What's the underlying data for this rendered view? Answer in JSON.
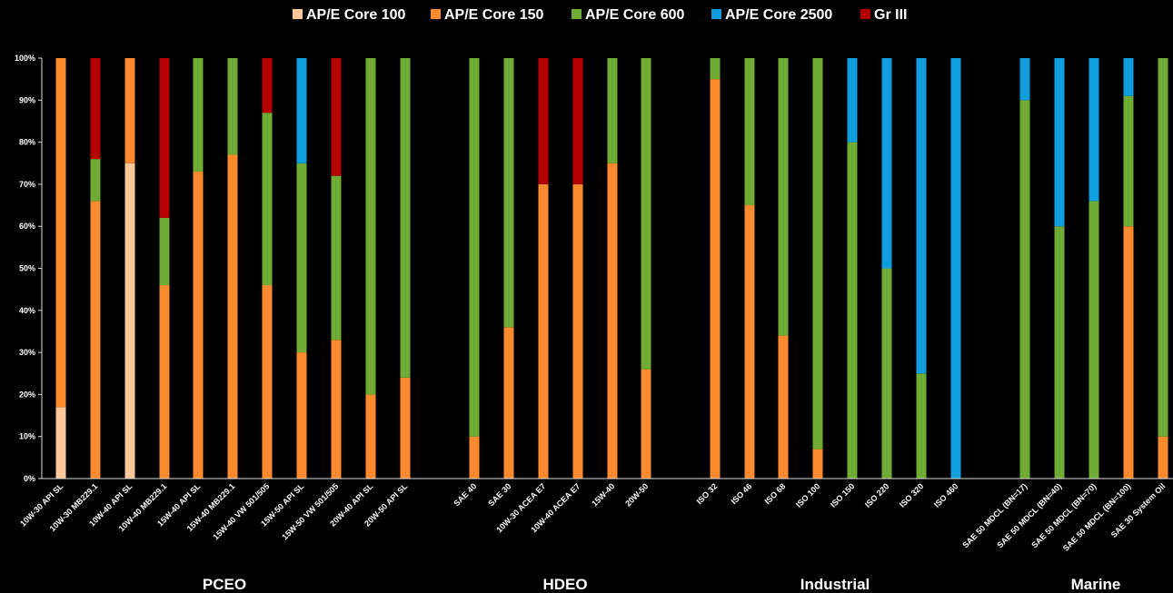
{
  "chart_data": {
    "type": "bar",
    "stacked": true,
    "percent": true,
    "title": "",
    "xlabel": "",
    "ylabel": "",
    "ylim": [
      0,
      100
    ],
    "y_ticks": [
      "0%",
      "10%",
      "20%",
      "30%",
      "40%",
      "50%",
      "60%",
      "70%",
      "80%",
      "90%",
      "100%"
    ],
    "grid": false,
    "legend_position": "top-center",
    "series": [
      {
        "name": "AP/E Core 100",
        "color": "#fcc89a"
      },
      {
        "name": "AP/E Core 150",
        "color": "#fb8a2e"
      },
      {
        "name": "AP/E Core 600",
        "color": "#6fab35"
      },
      {
        "name": "AP/E Core 2500",
        "color": "#0f9ede"
      },
      {
        "name": "Gr III",
        "color": "#b40000"
      }
    ],
    "categories": [
      "10W-30 API SL",
      "10W-30 MB229.1",
      "10W-40 API SL",
      "10W-40 MB229.1",
      "15W-40 API SL",
      "15W-40 MB229.1",
      "15W-40 VW 501/505",
      "15W-50 API SL",
      "15W-50 VW 501/505",
      "20W-40 API SL",
      "20W-50 API SL",
      "SAE 40",
      "SAE 30",
      "10W-30 ACEA E7",
      "10W-40 ACEA E7",
      "15W-40",
      "20W-50",
      "ISO 32",
      "ISO 46",
      "ISO 68",
      "ISO 100",
      "ISO 150",
      "ISO 220",
      "ISO 320",
      "ISO 460",
      "SAE 50 MDCL (BN=17)",
      "SAE 50 MDCL (BN=40)",
      "SAE 50 MDCL (BN=70)",
      "SAE 50 MDCL (BN=100)",
      "SAE 30 System Oil"
    ],
    "values": [
      [
        17,
        83,
        0,
        0,
        0
      ],
      [
        0,
        66,
        10,
        0,
        24
      ],
      [
        75,
        25,
        0,
        0,
        0
      ],
      [
        0,
        46,
        16,
        0,
        38
      ],
      [
        0,
        73,
        27,
        0,
        0
      ],
      [
        0,
        77,
        23,
        0,
        0
      ],
      [
        0,
        46,
        41,
        0,
        13
      ],
      [
        0,
        30,
        45,
        25,
        0
      ],
      [
        0,
        33,
        39,
        0,
        28
      ],
      [
        0,
        20,
        80,
        0,
        0
      ],
      [
        0,
        24,
        76,
        0,
        0
      ],
      [
        0,
        10,
        90,
        0,
        0
      ],
      [
        0,
        36,
        64,
        0,
        0
      ],
      [
        0,
        70,
        0,
        0,
        30
      ],
      [
        0,
        70,
        0,
        0,
        30
      ],
      [
        0,
        75,
        25,
        0,
        0
      ],
      [
        0,
        26,
        74,
        0,
        0
      ],
      [
        0,
        95,
        5,
        0,
        0
      ],
      [
        0,
        65,
        35,
        0,
        0
      ],
      [
        0,
        34,
        66,
        0,
        0
      ],
      [
        0,
        7,
        93,
        0,
        0
      ],
      [
        0,
        0,
        80,
        20,
        0
      ],
      [
        0,
        0,
        50,
        50,
        0
      ],
      [
        0,
        0,
        25,
        75,
        0
      ],
      [
        0,
        0,
        0,
        100,
        0
      ],
      [
        0,
        0,
        90,
        10,
        0
      ],
      [
        0,
        0,
        60,
        40,
        0
      ],
      [
        0,
        0,
        66,
        34,
        0
      ],
      [
        0,
        60,
        31,
        9,
        0
      ],
      [
        0,
        10,
        90,
        0,
        0
      ]
    ],
    "groups": [
      {
        "name": "PCEO",
        "start": 0,
        "end": 10
      },
      {
        "name": "HDEO",
        "start": 11,
        "end": 16
      },
      {
        "name": "Industrial",
        "start": 17,
        "end": 24
      },
      {
        "name": "Marine",
        "start": 25,
        "end": 29
      }
    ]
  }
}
